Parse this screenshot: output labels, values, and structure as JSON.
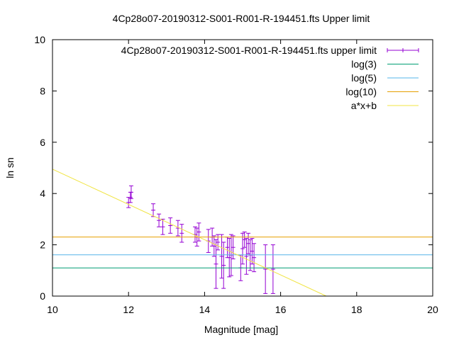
{
  "chart_data": {
    "type": "scatter",
    "title": "4Cp28o07-20190312-S001-R001-R-194451.fts Upper limit",
    "xlabel": "Magnitude [mag]",
    "ylabel": "ln sn",
    "xlim": [
      10,
      20
    ],
    "ylim": [
      0,
      10
    ],
    "xticks": [
      "10",
      "12",
      "14",
      "16",
      "18",
      "20"
    ],
    "yticks": [
      "0",
      "2",
      "4",
      "6",
      "8",
      "10"
    ],
    "grid": false,
    "legend_position": "top-right",
    "series": [
      {
        "name": "4Cp28o07-20190312-S001-R001-R-194451.fts upper limit",
        "kind": "errorbars",
        "color": "#9400d3",
        "points": [
          {
            "x": 12.0,
            "y": 3.65,
            "err": 0.2
          },
          {
            "x": 12.05,
            "y": 3.85,
            "err": 0.2
          },
          {
            "x": 12.07,
            "y": 4.05,
            "err": 0.25
          },
          {
            "x": 12.65,
            "y": 3.35,
            "err": 0.25
          },
          {
            "x": 12.8,
            "y": 2.95,
            "err": 0.25
          },
          {
            "x": 12.9,
            "y": 2.7,
            "err": 0.3
          },
          {
            "x": 13.1,
            "y": 2.75,
            "err": 0.3
          },
          {
            "x": 13.3,
            "y": 2.65,
            "err": 0.3
          },
          {
            "x": 13.4,
            "y": 2.45,
            "err": 0.35
          },
          {
            "x": 13.75,
            "y": 2.4,
            "err": 0.3
          },
          {
            "x": 13.8,
            "y": 2.3,
            "err": 0.35
          },
          {
            "x": 13.85,
            "y": 2.5,
            "err": 0.35
          },
          {
            "x": 14.1,
            "y": 2.15,
            "err": 0.45
          },
          {
            "x": 14.2,
            "y": 2.3,
            "err": 0.35
          },
          {
            "x": 14.25,
            "y": 1.95,
            "err": 0.4
          },
          {
            "x": 14.3,
            "y": 1.25,
            "err": 0.95
          },
          {
            "x": 14.35,
            "y": 2.1,
            "err": 0.3
          },
          {
            "x": 14.45,
            "y": 1.55,
            "err": 0.85
          },
          {
            "x": 14.5,
            "y": 1.2,
            "err": 0.9
          },
          {
            "x": 14.6,
            "y": 1.9,
            "err": 0.4
          },
          {
            "x": 14.65,
            "y": 1.5,
            "err": 0.75
          },
          {
            "x": 14.7,
            "y": 1.6,
            "err": 0.8
          },
          {
            "x": 14.75,
            "y": 1.9,
            "err": 0.45
          },
          {
            "x": 14.95,
            "y": 1.1,
            "err": 0.5
          },
          {
            "x": 15.0,
            "y": 1.85,
            "err": 0.6
          },
          {
            "x": 15.05,
            "y": 2.2,
            "err": 0.3
          },
          {
            "x": 15.1,
            "y": 1.55,
            "err": 0.7
          },
          {
            "x": 15.15,
            "y": 2.05,
            "err": 0.4
          },
          {
            "x": 15.2,
            "y": 1.6,
            "err": 0.6
          },
          {
            "x": 15.25,
            "y": 1.75,
            "err": 0.5
          },
          {
            "x": 15.3,
            "y": 1.5,
            "err": 0.55
          },
          {
            "x": 15.6,
            "y": 1.05,
            "err": 0.95
          },
          {
            "x": 15.8,
            "y": 1.05,
            "err": 0.95
          }
        ]
      },
      {
        "name": "log(3)",
        "kind": "hline",
        "color": "#009e73",
        "y": 1.0986
      },
      {
        "name": "log(5)",
        "kind": "hline",
        "color": "#56b4e9",
        "y": 1.6094
      },
      {
        "name": "log(10)",
        "kind": "hline",
        "color": "#e69f00",
        "y": 2.3026
      },
      {
        "name": "a*x+b",
        "kind": "line",
        "color": "#f0e442",
        "x": [
          10,
          17.2
        ],
        "y": [
          4.95,
          0
        ]
      }
    ]
  }
}
